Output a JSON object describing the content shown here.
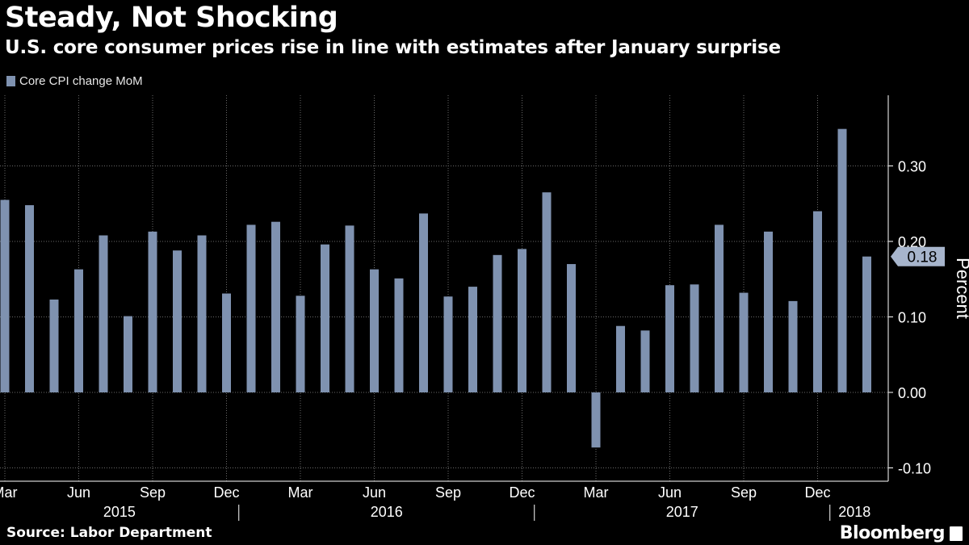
{
  "title": "Steady, Not Shocking",
  "subtitle": "U.S. core consumer prices rise in line with estimates after January surprise",
  "source": "Source: Labor Department",
  "brand": "Bloomberg",
  "chart_data": {
    "type": "bar",
    "series": [
      {
        "name": "Core CPI change MoM",
        "color": "#7f92b0",
        "values": [
          0.255,
          0.248,
          0.123,
          0.163,
          0.208,
          0.101,
          0.213,
          0.188,
          0.208,
          0.131,
          0.222,
          0.226,
          0.128,
          0.196,
          0.221,
          0.163,
          0.151,
          0.237,
          0.127,
          0.14,
          0.182,
          0.19,
          0.265,
          0.17,
          -0.073,
          0.088,
          0.082,
          0.142,
          0.143,
          0.222,
          0.132,
          0.213,
          0.121,
          0.24,
          0.349,
          0.18
        ]
      }
    ],
    "x_tick_labels": [
      {
        "index": 0,
        "label": "Mar"
      },
      {
        "index": 3,
        "label": "Jun"
      },
      {
        "index": 6,
        "label": "Sep"
      },
      {
        "index": 9,
        "label": "Dec"
      },
      {
        "index": 12,
        "label": "Mar"
      },
      {
        "index": 15,
        "label": "Jun"
      },
      {
        "index": 18,
        "label": "Sep"
      },
      {
        "index": 21,
        "label": "Dec"
      },
      {
        "index": 24,
        "label": "Mar"
      },
      {
        "index": 27,
        "label": "Jun"
      },
      {
        "index": 30,
        "label": "Sep"
      },
      {
        "index": 33,
        "label": "Dec"
      }
    ],
    "year_labels": [
      {
        "label": "2015",
        "from": 0,
        "to": 9
      },
      {
        "label": "2016",
        "from": 10,
        "to": 21
      },
      {
        "label": "2017",
        "from": 22,
        "to": 33
      },
      {
        "label": "2018",
        "from": 34,
        "to": 35
      }
    ],
    "y_ticks": [
      "0.30",
      "0.20",
      "0.10",
      "0.00",
      "-0.10"
    ],
    "ylim": [
      -0.1,
      0.38
    ],
    "ylabel": "Percent",
    "last_value_label": "0.18",
    "grid": true,
    "legend_position": "top-left"
  }
}
